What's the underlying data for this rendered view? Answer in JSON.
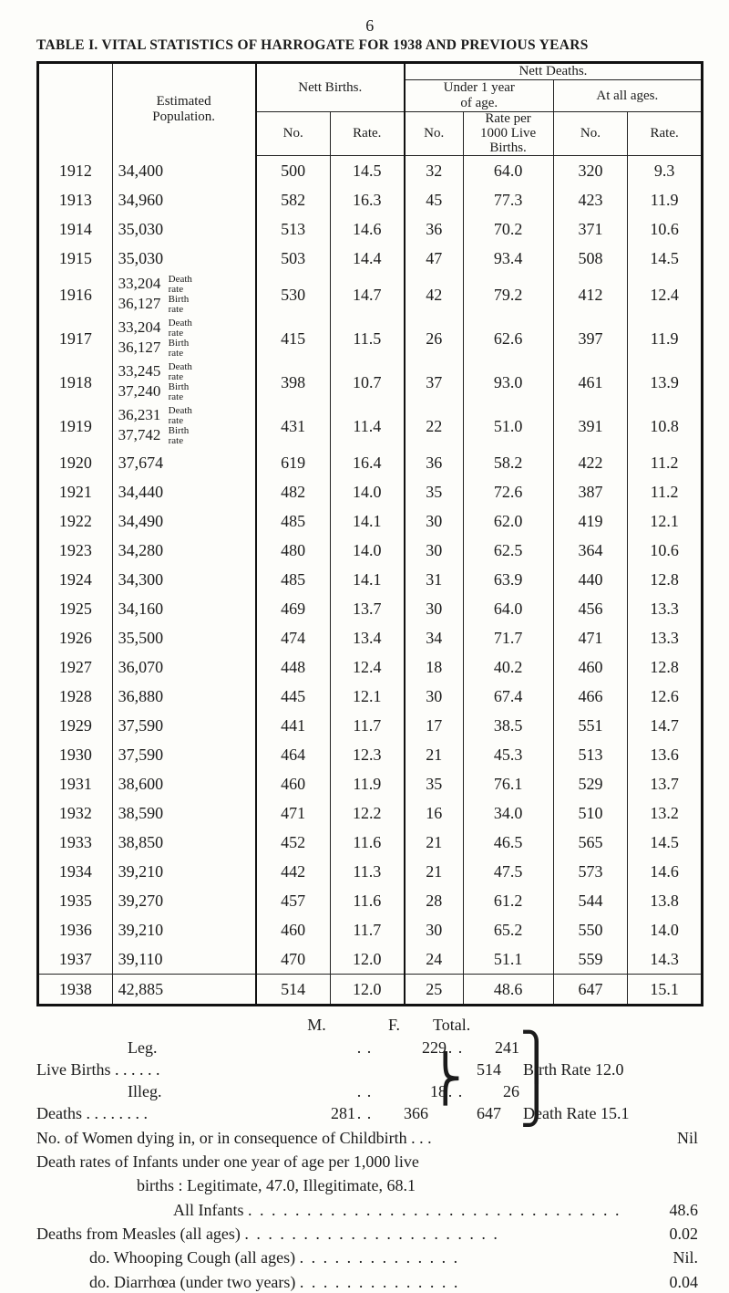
{
  "page_number_top": "6",
  "title": "TABLE I. VITAL STATISTICS OF HARROGATE FOR 1938 AND PREVIOUS YEARS",
  "table": {
    "type": "table",
    "headers": {
      "estimated_population": "Estimated\nPopulation.",
      "nett_births": "Nett Births.",
      "nett_deaths": "Nett Deaths.",
      "under_1_year": "Under 1 year\nof age.",
      "at_all_ages": "At all ages.",
      "no": "No.",
      "rate": "Rate.",
      "rate_per_1000": "Rate per\n1000 Live\nBirths."
    },
    "columns": [
      "year",
      "population",
      "births_no",
      "births_rate",
      "deaths_u1_no",
      "deaths_u1_rate",
      "deaths_all_no",
      "deaths_all_rate"
    ],
    "rows": [
      {
        "year": "1912",
        "population": "34,400",
        "births_no": "500",
        "births_rate": "14.5",
        "deaths_u1_no": "32",
        "deaths_u1_rate": "64.0",
        "deaths_all_no": "320",
        "deaths_all_rate": "9.3"
      },
      {
        "year": "1913",
        "population": "34,960",
        "births_no": "582",
        "births_rate": "16.3",
        "deaths_u1_no": "45",
        "deaths_u1_rate": "77.3",
        "deaths_all_no": "423",
        "deaths_all_rate": "11.9"
      },
      {
        "year": "1914",
        "population": "35,030",
        "births_no": "513",
        "births_rate": "14.6",
        "deaths_u1_no": "36",
        "deaths_u1_rate": "70.2",
        "deaths_all_no": "371",
        "deaths_all_rate": "10.6"
      },
      {
        "year": "1915",
        "population": "35,030",
        "births_no": "503",
        "births_rate": "14.4",
        "deaths_u1_no": "47",
        "deaths_u1_rate": "93.4",
        "deaths_all_no": "508",
        "deaths_all_rate": "14.5"
      },
      {
        "year": "1916",
        "population": "33,204",
        "pop_suffix": "Death\nrate",
        "population2": "36,127",
        "pop2_suffix": "Birth\nrate",
        "births_no": "530",
        "births_rate": "14.7",
        "deaths_u1_no": "42",
        "deaths_u1_rate": "79.2",
        "deaths_all_no": "412",
        "deaths_all_rate": "12.4"
      },
      {
        "year": "1917",
        "population": "33,204",
        "pop_suffix": "Death\nrate",
        "population2": "36,127",
        "pop2_suffix": "Birth\nrate",
        "births_no": "415",
        "births_rate": "11.5",
        "deaths_u1_no": "26",
        "deaths_u1_rate": "62.6",
        "deaths_all_no": "397",
        "deaths_all_rate": "11.9"
      },
      {
        "year": "1918",
        "population": "33,245",
        "pop_suffix": "Death\nrate",
        "population2": "37,240",
        "pop2_suffix": "Birth\nrate",
        "births_no": "398",
        "births_rate": "10.7",
        "deaths_u1_no": "37",
        "deaths_u1_rate": "93.0",
        "deaths_all_no": "461",
        "deaths_all_rate": "13.9"
      },
      {
        "year": "1919",
        "population": "36,231",
        "pop_suffix": "Death\nrate",
        "population2": "37,742",
        "pop2_suffix": "Birth\nrate",
        "births_no": "431",
        "births_rate": "11.4",
        "deaths_u1_no": "22",
        "deaths_u1_rate": "51.0",
        "deaths_all_no": "391",
        "deaths_all_rate": "10.8"
      },
      {
        "year": "1920",
        "population": "37,674",
        "births_no": "619",
        "births_rate": "16.4",
        "deaths_u1_no": "36",
        "deaths_u1_rate": "58.2",
        "deaths_all_no": "422",
        "deaths_all_rate": "11.2"
      },
      {
        "year": "1921",
        "population": "34,440",
        "births_no": "482",
        "births_rate": "14.0",
        "deaths_u1_no": "35",
        "deaths_u1_rate": "72.6",
        "deaths_all_no": "387",
        "deaths_all_rate": "11.2"
      },
      {
        "year": "1922",
        "population": "34,490",
        "births_no": "485",
        "births_rate": "14.1",
        "deaths_u1_no": "30",
        "deaths_u1_rate": "62.0",
        "deaths_all_no": "419",
        "deaths_all_rate": "12.1"
      },
      {
        "year": "1923",
        "population": "34,280",
        "births_no": "480",
        "births_rate": "14.0",
        "deaths_u1_no": "30",
        "deaths_u1_rate": "62.5",
        "deaths_all_no": "364",
        "deaths_all_rate": "10.6"
      },
      {
        "year": "1924",
        "population": "34,300",
        "births_no": "485",
        "births_rate": "14.1",
        "deaths_u1_no": "31",
        "deaths_u1_rate": "63.9",
        "deaths_all_no": "440",
        "deaths_all_rate": "12.8"
      },
      {
        "year": "1925",
        "population": "34,160",
        "births_no": "469",
        "births_rate": "13.7",
        "deaths_u1_no": "30",
        "deaths_u1_rate": "64.0",
        "deaths_all_no": "456",
        "deaths_all_rate": "13.3"
      },
      {
        "year": "1926",
        "population": "35,500",
        "births_no": "474",
        "births_rate": "13.4",
        "deaths_u1_no": "34",
        "deaths_u1_rate": "71.7",
        "deaths_all_no": "471",
        "deaths_all_rate": "13.3"
      },
      {
        "year": "1927",
        "population": "36,070",
        "births_no": "448",
        "births_rate": "12.4",
        "deaths_u1_no": "18",
        "deaths_u1_rate": "40.2",
        "deaths_all_no": "460",
        "deaths_all_rate": "12.8"
      },
      {
        "year": "1928",
        "population": "36,880",
        "births_no": "445",
        "births_rate": "12.1",
        "deaths_u1_no": "30",
        "deaths_u1_rate": "67.4",
        "deaths_all_no": "466",
        "deaths_all_rate": "12.6"
      },
      {
        "year": "1929",
        "population": "37,590",
        "births_no": "441",
        "births_rate": "11.7",
        "deaths_u1_no": "17",
        "deaths_u1_rate": "38.5",
        "deaths_all_no": "551",
        "deaths_all_rate": "14.7"
      },
      {
        "year": "1930",
        "population": "37,590",
        "births_no": "464",
        "births_rate": "12.3",
        "deaths_u1_no": "21",
        "deaths_u1_rate": "45.3",
        "deaths_all_no": "513",
        "deaths_all_rate": "13.6"
      },
      {
        "year": "1931",
        "population": "38,600",
        "births_no": "460",
        "births_rate": "11.9",
        "deaths_u1_no": "35",
        "deaths_u1_rate": "76.1",
        "deaths_all_no": "529",
        "deaths_all_rate": "13.7"
      },
      {
        "year": "1932",
        "population": "38,590",
        "births_no": "471",
        "births_rate": "12.2",
        "deaths_u1_no": "16",
        "deaths_u1_rate": "34.0",
        "deaths_all_no": "510",
        "deaths_all_rate": "13.2"
      },
      {
        "year": "1933",
        "population": "38,850",
        "births_no": "452",
        "births_rate": "11.6",
        "deaths_u1_no": "21",
        "deaths_u1_rate": "46.5",
        "deaths_all_no": "565",
        "deaths_all_rate": "14.5"
      },
      {
        "year": "1934",
        "population": "39,210",
        "births_no": "442",
        "births_rate": "11.3",
        "deaths_u1_no": "21",
        "deaths_u1_rate": "47.5",
        "deaths_all_no": "573",
        "deaths_all_rate": "14.6"
      },
      {
        "year": "1935",
        "population": "39,270",
        "births_no": "457",
        "births_rate": "11.6",
        "deaths_u1_no": "28",
        "deaths_u1_rate": "61.2",
        "deaths_all_no": "544",
        "deaths_all_rate": "13.8"
      },
      {
        "year": "1936",
        "population": "39,210",
        "births_no": "460",
        "births_rate": "11.7",
        "deaths_u1_no": "30",
        "deaths_u1_rate": "65.2",
        "deaths_all_no": "550",
        "deaths_all_rate": "14.0"
      },
      {
        "year": "1937",
        "population": "39,110",
        "births_no": "470",
        "births_rate": "12.0",
        "deaths_u1_no": "24",
        "deaths_u1_rate": "51.1",
        "deaths_all_no": "559",
        "deaths_all_rate": "14.3"
      },
      {
        "year": "1938",
        "population": "42,885",
        "births_no": "514",
        "births_rate": "12.0",
        "deaths_u1_no": "25",
        "deaths_u1_rate": "48.6",
        "deaths_all_no": "647",
        "deaths_all_rate": "15.1"
      }
    ]
  },
  "below": {
    "mf_M": "M.",
    "mf_F": "F.",
    "mf_Total": "Total.",
    "leg_label": "Leg.",
    "leg_m": "229",
    "leg_f": "241",
    "live_births_label": "Live Births . .   . .   . .",
    "live_births_total": "514",
    "live_births_after": "Birth Rate 12.0",
    "illeg_label": "Illeg.",
    "illeg_m": "18",
    "illeg_f": "26",
    "deaths_label": "Deaths . .   . .   . .   . .",
    "deaths_m": "281",
    "deaths_f": "366",
    "deaths_total": "647",
    "deaths_after": "Death Rate 15.1",
    "line_childbirth_a": "No. of Women dying in, or in consequence of Childbirth . . .",
    "line_childbirth_v": "Nil",
    "line_infant_rates": "Death rates of Infants under one year of age per 1,000 live",
    "line_infant_rates2": "births :    Legitimate, 47.0,    Illegitimate, 68.1",
    "all_infants_label": "All Infants",
    "all_infants_dots": ". . . . . . . . . . . . . . . . . . . . . . . . . . . . . . . .",
    "all_infants_v": "48.6",
    "measles_label": "Deaths from   Measles (all ages)",
    "measles_dots": ". . . . . . . . . . . . . . . . . . . . . .",
    "measles_v": "0.02",
    "whoop_label": "do.        Whooping Cough (all ages)",
    "whoop_dots": ". . . . . . . . . . . . . .",
    "whoop_v": "Nil.",
    "diarr_label": "do.        Diarrhœa (under two years)",
    "diarr_dots": ". . . . . . . . . . . . . .",
    "diarr_v": "0.04",
    "dots2": ". .",
    "dots2b": ". ."
  },
  "style": {
    "background_color": "#fdfdfa",
    "text_color": "#1b1b1b",
    "table_border_heavy": "#111111",
    "table_border_thin": "#222222",
    "body_fontsize_pt": 13,
    "title_fontsize_pt": 12,
    "header_fontsize_pt": 11
  }
}
